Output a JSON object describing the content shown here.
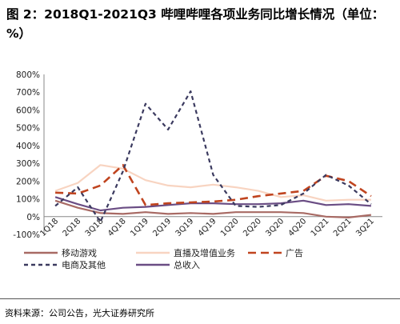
{
  "title": "图 2：2018Q1-2021Q3 哔哩哔哩各项业务同比增长情况（单位：%）",
  "source": "资料来源：公司公告，光大证券研究所",
  "chart_data": {
    "type": "line",
    "categories": [
      "1Q18",
      "2Q18",
      "3Q18",
      "4Q18",
      "1Q19",
      "2Q19",
      "3Q19",
      "4Q19",
      "1Q20",
      "2Q20",
      "3Q20",
      "4Q20",
      "1Q21",
      "2Q21",
      "3Q21"
    ],
    "ylim": [
      -100,
      800
    ],
    "yticks": [
      -100,
      0,
      100,
      200,
      300,
      400,
      500,
      600,
      700,
      800
    ],
    "ytick_labels": [
      "-100%",
      "0%",
      "100%",
      "200%",
      "300%",
      "400%",
      "500%",
      "600%",
      "700%",
      "800%"
    ],
    "grid": false,
    "legend_position": "bottom",
    "series": [
      {
        "name": "移动游戏",
        "color": "#a86a64",
        "dash": "solid",
        "values": [
          90,
          50,
          20,
          15,
          25,
          15,
          20,
          15,
          25,
          25,
          25,
          20,
          0,
          -5,
          10
        ]
      },
      {
        "name": "直播及增值业务",
        "color": "#f8d4c1",
        "dash": "solid",
        "values": [
          145,
          190,
          290,
          270,
          205,
          175,
          165,
          180,
          165,
          145,
          110,
          120,
          90,
          95,
          95
        ]
      },
      {
        "name": "广告",
        "color": "#c0441f",
        "dash": "dash",
        "values": [
          135,
          130,
          175,
          290,
          65,
          75,
          80,
          85,
          95,
          115,
          130,
          145,
          230,
          200,
          115
        ]
      },
      {
        "name": "电商及其他",
        "color": "#3b3a5f",
        "dash": "dot",
        "values": [
          60,
          165,
          -30,
          255,
          635,
          490,
          705,
          235,
          60,
          55,
          65,
          130,
          235,
          175,
          70
        ]
      },
      {
        "name": "总收入",
        "color": "#6a4d84",
        "dash": "solid",
        "values": [
          110,
          70,
          35,
          50,
          55,
          65,
          75,
          75,
          70,
          70,
          75,
          90,
          65,
          70,
          60
        ]
      }
    ]
  }
}
